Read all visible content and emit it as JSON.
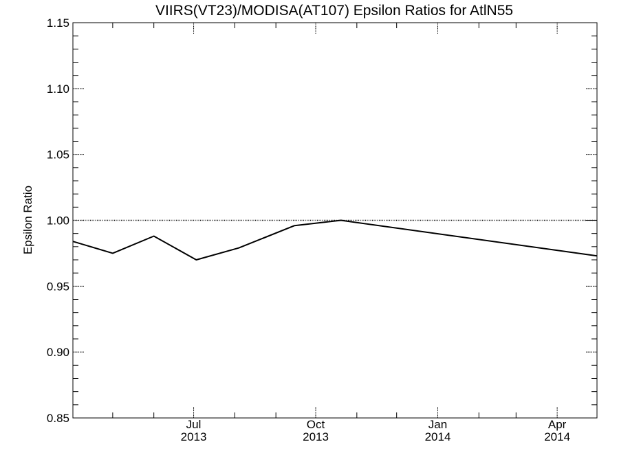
{
  "chart_data": {
    "type": "line",
    "title": "VIIRS(VT23)/MODISA(AT107)  Epsilon Ratios for AtlN55",
    "xlabel": "",
    "ylabel": "Epsilon Ratio",
    "x_axis_kind": "date",
    "xlim": [
      "2013-04-01",
      "2014-05-01"
    ],
    "ylim": [
      0.85,
      1.15
    ],
    "y_ticks": [
      "0.85",
      "0.90",
      "0.95",
      "1.00",
      "1.05",
      "1.10",
      "1.15"
    ],
    "x_ticks": [
      {
        "date": "2013-07-01",
        "month": "Jul",
        "year": "2013"
      },
      {
        "date": "2013-10-01",
        "month": "Oct",
        "year": "2013"
      },
      {
        "date": "2014-01-01",
        "month": "Jan",
        "year": "2014"
      },
      {
        "date": "2014-04-01",
        "month": "Apr",
        "year": "2014"
      }
    ],
    "x_minor_ticks": [
      "2013-05-01",
      "2013-06-01",
      "2013-08-01",
      "2013-09-01",
      "2013-11-01",
      "2013-12-01",
      "2014-02-01",
      "2014-03-01"
    ],
    "reference_line": {
      "y": 1.0,
      "style": "dotted"
    },
    "series": [
      {
        "x": [
          "2013-04-01",
          "2013-05-01",
          "2013-06-01",
          "2013-07-03",
          "2013-08-04",
          "2013-09-15",
          "2013-10-20",
          "2014-05-01"
        ],
        "y": [
          0.984,
          0.975,
          0.988,
          0.97,
          0.979,
          0.996,
          1.0,
          0.973
        ]
      }
    ],
    "grid": false
  }
}
